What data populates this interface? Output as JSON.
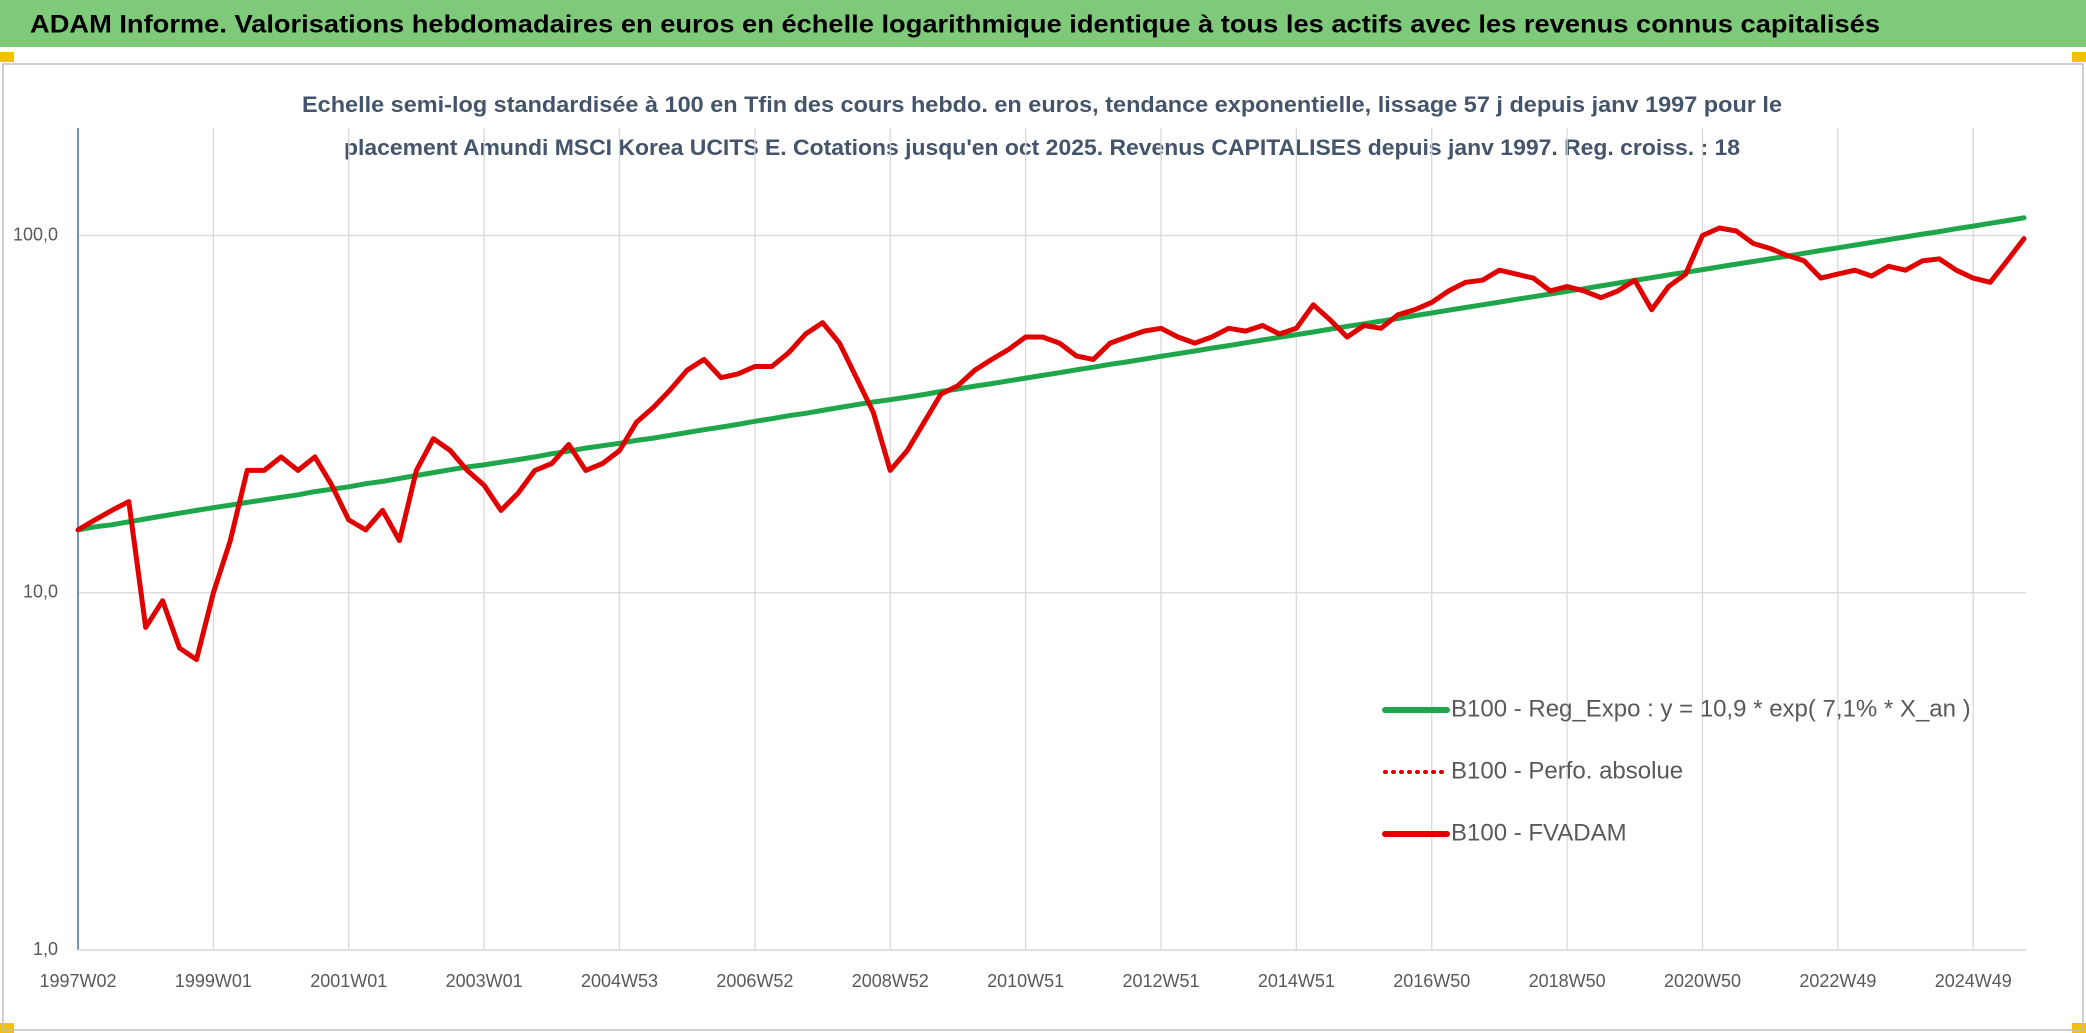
{
  "header": "ADAM Informe. Valorisations hebdomadaires en euros en échelle logarithmique identique à tous les actifs avec les revenus connus capitalisés",
  "chart_data": {
    "type": "line",
    "subtitle": [
      "Echelle semi-log standardisée à 100 en Tfin des cours hebdo. en euros, tendance exponentielle, lissage 57 j depuis janv 1997 pour le",
      "placement Amundi MSCI Korea UCITS E. Cotations jusqu'en oct 2025. Revenus CAPITALISES depuis janv 1997. Reg. croiss. : 18"
    ],
    "log_scale": true,
    "grid": true,
    "legend": "right",
    "ylim": [
      1,
      200
    ],
    "yticks": [
      {
        "value": 1,
        "label": "1,0"
      },
      {
        "value": 10,
        "label": "10,0"
      },
      {
        "value": 100,
        "label": "100,0"
      }
    ],
    "categories": [
      "1997W02",
      null,
      null,
      null,
      null,
      null,
      null,
      null,
      "1999W01",
      null,
      null,
      null,
      null,
      null,
      null,
      null,
      "2001W01",
      null,
      null,
      null,
      null,
      null,
      null,
      null,
      "2003W01",
      null,
      null,
      null,
      null,
      null,
      null,
      null,
      "2004W53",
      null,
      null,
      null,
      null,
      null,
      null,
      null,
      "2006W52",
      null,
      null,
      null,
      null,
      null,
      null,
      null,
      "2008W52",
      null,
      null,
      null,
      null,
      null,
      null,
      null,
      "2010W51",
      null,
      null,
      null,
      null,
      null,
      null,
      null,
      "2012W51",
      null,
      null,
      null,
      null,
      null,
      null,
      null,
      "2014W51",
      null,
      null,
      null,
      null,
      null,
      null,
      null,
      "2016W50",
      null,
      null,
      null,
      null,
      null,
      null,
      null,
      "2018W50",
      null,
      null,
      null,
      null,
      null,
      null,
      null,
      "2020W50",
      null,
      null,
      null,
      null,
      null,
      null,
      null,
      "2022W49",
      null,
      null,
      null,
      null,
      null,
      null,
      null,
      "2024W49",
      null,
      null,
      null
    ],
    "series": [
      {
        "name": "B100 - Reg_Expo : y = 10,9 * exp( 7,1% *  X_an )",
        "color": "#1fa64a",
        "style": "solid",
        "values": [
          15.0,
          15.3,
          15.5,
          15.8,
          16.1,
          16.4,
          16.7,
          17.0,
          17.3,
          17.6,
          17.9,
          18.2,
          18.5,
          18.8,
          19.2,
          19.5,
          19.8,
          20.2,
          20.5,
          20.9,
          21.3,
          21.7,
          22.1,
          22.5,
          22.8,
          23.2,
          23.6,
          24.0,
          24.5,
          24.9,
          25.4,
          25.8,
          26.2,
          26.7,
          27.1,
          27.6,
          28.1,
          28.6,
          29.1,
          29.6,
          30.2,
          30.7,
          31.3,
          31.8,
          32.4,
          33.0,
          33.6,
          34.2,
          34.7,
          35.3,
          35.9,
          36.6,
          37.2,
          37.9,
          38.5,
          39.2,
          39.9,
          40.6,
          41.3,
          42.1,
          42.8,
          43.6,
          44.3,
          45.1,
          45.9,
          46.7,
          47.5,
          48.4,
          49.2,
          50.1,
          51.0,
          51.9,
          52.8,
          53.7,
          54.7,
          55.7,
          56.6,
          57.6,
          58.6,
          59.7,
          60.7,
          61.8,
          62.9,
          64.0,
          65.1,
          66.3,
          67.4,
          68.6,
          69.8,
          71.0,
          72.3,
          73.6,
          74.9,
          76.2,
          77.6,
          78.9,
          80.3,
          81.7,
          83.2,
          84.6,
          86.1,
          87.6,
          89.2,
          90.8,
          92.4,
          94.0,
          95.7,
          97.4,
          99.1,
          100.9,
          102.6,
          104.5,
          106.3,
          108.2,
          110.1,
          112.1
        ]
      },
      {
        "name": "B100 - Perfo. absolue",
        "color": "#e00000",
        "style": "dotted",
        "values": [
          15,
          16,
          17,
          18,
          8,
          9.5,
          7,
          6.5,
          10,
          14,
          22,
          22,
          24,
          22,
          24,
          20,
          16,
          15,
          17,
          14,
          22,
          27,
          25,
          22,
          20,
          17,
          19,
          22,
          23,
          26,
          22,
          23,
          25,
          30,
          33,
          37,
          42,
          45,
          40,
          41,
          43,
          43,
          47,
          53,
          57,
          50,
          40,
          32,
          22,
          25,
          30,
          36,
          38,
          42,
          45,
          48,
          52,
          52,
          50,
          46,
          45,
          50,
          52,
          54,
          55,
          52,
          50,
          52,
          55,
          54,
          56,
          53,
          55,
          64,
          58,
          52,
          56,
          55,
          60,
          62,
          65,
          70,
          74,
          75,
          80,
          78,
          76,
          70,
          72,
          70,
          67,
          70,
          75,
          62,
          72,
          78,
          100,
          105,
          103,
          95,
          92,
          88,
          85,
          76,
          78,
          80,
          77,
          82,
          80,
          85,
          86,
          80,
          76,
          74,
          85,
          98
        ]
      },
      {
        "name": "B100 - FVADAM",
        "color": "#e00000",
        "style": "solid",
        "values": [
          15,
          16,
          17,
          18,
          8,
          9.5,
          7,
          6.5,
          10,
          14,
          22,
          22,
          24,
          22,
          24,
          20,
          16,
          15,
          17,
          14,
          22,
          27,
          25,
          22,
          20,
          17,
          19,
          22,
          23,
          26,
          22,
          23,
          25,
          30,
          33,
          37,
          42,
          45,
          40,
          41,
          43,
          43,
          47,
          53,
          57,
          50,
          40,
          32,
          22,
          25,
          30,
          36,
          38,
          42,
          45,
          48,
          52,
          52,
          50,
          46,
          45,
          50,
          52,
          54,
          55,
          52,
          50,
          52,
          55,
          54,
          56,
          53,
          55,
          64,
          58,
          52,
          56,
          55,
          60,
          62,
          65,
          70,
          74,
          75,
          80,
          78,
          76,
          70,
          72,
          70,
          67,
          70,
          75,
          62,
          72,
          78,
          100,
          105,
          103,
          95,
          92,
          88,
          85,
          76,
          78,
          80,
          77,
          82,
          80,
          85,
          86,
          80,
          76,
          74,
          85,
          98
        ]
      }
    ]
  }
}
